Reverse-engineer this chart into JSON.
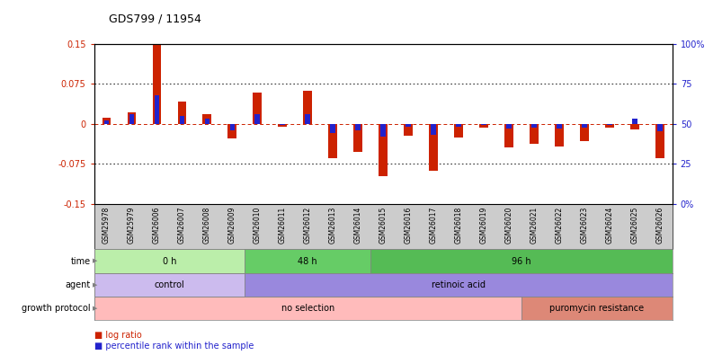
{
  "title": "GDS799 / 11954",
  "samples": [
    "GSM25978",
    "GSM25979",
    "GSM26006",
    "GSM26007",
    "GSM26008",
    "GSM26009",
    "GSM26010",
    "GSM26011",
    "GSM26012",
    "GSM26013",
    "GSM26014",
    "GSM26015",
    "GSM26016",
    "GSM26017",
    "GSM26018",
    "GSM26019",
    "GSM26020",
    "GSM26021",
    "GSM26022",
    "GSM26023",
    "GSM26024",
    "GSM26025",
    "GSM26026"
  ],
  "log_ratio": [
    0.012,
    0.022,
    0.152,
    0.042,
    0.018,
    -0.028,
    0.058,
    -0.005,
    0.062,
    -0.065,
    -0.052,
    -0.098,
    -0.022,
    -0.088,
    -0.025,
    -0.008,
    -0.045,
    -0.038,
    -0.042,
    -0.032,
    -0.008,
    -0.01,
    -0.065
  ],
  "percentile": [
    52,
    56,
    68,
    55,
    53,
    46,
    56,
    49,
    56,
    44,
    46,
    42,
    48,
    43,
    48,
    49.5,
    47,
    47.5,
    47,
    47.5,
    49.5,
    53,
    45.5
  ],
  "ylim_left": [
    -0.15,
    0.15
  ],
  "ylim_right": [
    0,
    100
  ],
  "yticks_left": [
    -0.15,
    -0.075,
    0,
    0.075,
    0.15
  ],
  "ytick_labels_left": [
    "-0.15",
    "-0.075",
    "0",
    "0.075",
    "0.15"
  ],
  "yticks_right": [
    0,
    25,
    50,
    75,
    100
  ],
  "ytick_labels_right": [
    "0%",
    "25",
    "50",
    "75",
    "100%"
  ],
  "log_ratio_color": "#CC2200",
  "percentile_color": "#2222CC",
  "bar_width": 0.35,
  "pct_bar_width": 0.2,
  "time_groups": [
    {
      "label": "0 h",
      "start": 0,
      "end": 6,
      "color": "#BBEEAA"
    },
    {
      "label": "48 h",
      "start": 6,
      "end": 11,
      "color": "#66CC66"
    },
    {
      "label": "96 h",
      "start": 11,
      "end": 23,
      "color": "#55BB55"
    }
  ],
  "agent_groups": [
    {
      "label": "control",
      "start": 0,
      "end": 6,
      "color": "#CCBBEE"
    },
    {
      "label": "retinoic acid",
      "start": 6,
      "end": 23,
      "color": "#9988DD"
    }
  ],
  "growth_groups": [
    {
      "label": "no selection",
      "start": 0,
      "end": 17,
      "color": "#FFBBBB"
    },
    {
      "label": "puromycin resistance",
      "start": 17,
      "end": 23,
      "color": "#DD8877"
    }
  ],
  "row_labels": [
    "time",
    "agent",
    "growth protocol"
  ],
  "sample_label_bg": "#CCCCCC",
  "legend_items": [
    {
      "label": "log ratio",
      "color": "#CC2200"
    },
    {
      "label": "percentile rank within the sample",
      "color": "#2222CC"
    }
  ]
}
